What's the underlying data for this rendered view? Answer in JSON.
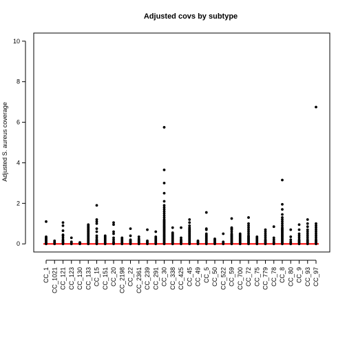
{
  "chart_data": {
    "type": "scatter",
    "title": "Adjusted covs by subtype",
    "xlabel": "",
    "ylabel": "Adjusted S. aureus coverage",
    "ylim": [
      -0.4,
      10.4
    ],
    "yticks": [
      0,
      2,
      4,
      6,
      8,
      10
    ],
    "reference_line": {
      "y": 0,
      "color": "#ff0000"
    },
    "point_color": "#000000",
    "categories": [
      "CC_1",
      "CC_1021",
      "CC_121",
      "CC_123",
      "CC_130",
      "CC_133",
      "CC_15",
      "CC_151",
      "CC_20",
      "CC_2198",
      "CC_22",
      "CC_2361",
      "CC_239",
      "CC_291",
      "CC_30",
      "CC_338",
      "CC_425",
      "CC_45",
      "CC_49",
      "CC_5",
      "CC_50",
      "CC_522",
      "CC_59",
      "CC_700",
      "CC_72",
      "CC_75",
      "CC_779",
      "CC_78",
      "CC_8",
      "CC_80",
      "CC_9",
      "CC_93",
      "CC_97"
    ],
    "series": [
      {
        "values": [
          [
            0,
            0.05,
            0.1,
            0.15,
            0.2,
            0.25,
            0.3,
            0.35,
            1.1
          ],
          [
            0,
            0.05,
            0.1,
            0.15
          ],
          [
            0,
            0.05,
            0.1,
            0.15,
            0.2,
            0.3,
            0.4,
            0.45,
            0.65,
            0.9,
            1.05
          ],
          [
            0,
            0.05,
            0.1,
            0.3
          ],
          [
            0,
            0.05,
            0.07
          ],
          [
            0,
            0.05,
            0.1,
            0.15,
            0.2,
            0.25,
            0.3,
            0.35,
            0.4,
            0.45,
            0.5,
            0.55,
            0.6,
            0.65,
            0.7,
            0.75,
            0.8,
            0.85,
            0.9,
            0.95
          ],
          [
            0,
            0.05,
            0.1,
            0.15,
            0.2,
            0.3,
            0.4,
            0.6,
            0.75,
            1.0,
            1.1,
            1.2,
            1.9
          ],
          [
            0,
            0.05,
            0.1,
            0.15,
            0.2,
            0.25,
            0.3,
            0.35,
            0.4
          ],
          [
            0,
            0.05,
            0.1,
            0.2,
            0.3,
            0.5,
            0.6,
            0.95,
            1.05
          ],
          [
            0,
            0.05,
            0.1,
            0.15,
            0.2,
            0.25,
            0.3
          ],
          [
            0,
            0.05,
            0.1,
            0.15,
            0.2,
            0.4,
            0.75
          ],
          [
            0,
            0.05,
            0.1,
            0.15,
            0.2,
            0.25,
            0.35
          ],
          [
            0,
            0.05,
            0.1,
            0.15,
            0.7
          ],
          [
            0,
            0.05,
            0.1,
            0.15,
            0.2,
            0.25,
            0.3,
            0.35,
            0.6
          ],
          [
            0,
            0.05,
            0.1,
            0.15,
            0.2,
            0.25,
            0.3,
            0.35,
            0.4,
            0.45,
            0.5,
            0.55,
            0.6,
            0.65,
            0.7,
            0.75,
            0.8,
            0.85,
            0.9,
            0.95,
            1.0,
            1.05,
            1.1,
            1.15,
            1.2,
            1.3,
            1.4,
            1.5,
            1.6,
            1.7,
            1.8,
            1.9,
            2.1,
            2.5,
            3.0,
            3.65,
            5.75
          ],
          [
            0,
            0.05,
            0.1,
            0.15,
            0.2,
            0.25,
            0.3,
            0.35,
            0.4,
            0.45,
            0.5,
            0.55,
            0.8
          ],
          [
            0,
            0.05,
            0.1,
            0.15,
            0.2,
            0.3,
            0.8
          ],
          [
            0,
            0.05,
            0.1,
            0.15,
            0.2,
            0.25,
            0.3,
            0.35,
            0.4,
            0.45,
            0.5,
            0.55,
            0.6,
            0.65,
            0.7,
            0.75,
            0.8,
            0.9,
            1.05,
            1.2
          ],
          [
            0,
            0.05,
            0.1,
            0.15
          ],
          [
            0,
            0.05,
            0.1,
            0.15,
            0.2,
            0.25,
            0.3,
            0.35,
            0.4,
            0.45,
            0.5,
            0.7,
            0.75,
            1.55
          ],
          [
            0,
            0.05,
            0.1,
            0.15,
            0.2,
            0.25
          ],
          [
            0,
            0.05,
            0.1,
            0.5
          ],
          [
            0,
            0.05,
            0.1,
            0.15,
            0.2,
            0.25,
            0.3,
            0.35,
            0.4,
            0.45,
            0.5,
            0.6,
            0.7,
            0.75,
            0.8,
            1.25
          ],
          [
            0,
            0.05,
            0.1,
            0.15,
            0.2,
            0.25,
            0.3,
            0.35,
            0.4,
            0.45,
            0.5
          ],
          [
            0,
            0.05,
            0.1,
            0.15,
            0.2,
            0.25,
            0.3,
            0.35,
            0.4,
            0.5,
            0.6,
            0.7,
            0.8,
            0.9,
            1.0,
            1.3
          ],
          [
            0,
            0.05,
            0.1,
            0.15,
            0.2,
            0.25,
            0.3,
            0.35
          ],
          [
            0,
            0.05,
            0.1,
            0.15,
            0.2,
            0.3,
            0.4,
            0.5,
            0.6,
            0.7
          ],
          [
            0,
            0.05,
            0.1,
            0.2,
            0.3,
            0.85
          ],
          [
            0,
            0.05,
            0.1,
            0.15,
            0.2,
            0.25,
            0.3,
            0.35,
            0.4,
            0.45,
            0.5,
            0.55,
            0.6,
            0.65,
            0.7,
            0.75,
            0.8,
            0.9,
            1.0,
            1.1,
            1.2,
            1.3,
            1.45,
            1.7,
            1.95,
            3.15
          ],
          [
            0,
            0.05,
            0.1,
            0.2,
            0.35,
            0.7
          ],
          [
            0,
            0.05,
            0.1,
            0.15,
            0.2,
            0.3,
            0.4,
            0.5,
            0.7,
            0.95
          ],
          [
            0,
            0.05,
            0.1,
            0.15,
            0.2,
            0.3,
            0.4,
            0.5,
            0.6,
            0.7,
            0.85,
            1.0,
            1.2
          ],
          [
            0,
            0.05,
            0.1,
            0.15,
            0.2,
            0.3,
            0.4,
            0.5,
            0.6,
            0.7,
            0.8,
            0.9,
            1.0,
            6.75
          ]
        ]
      }
    ]
  }
}
